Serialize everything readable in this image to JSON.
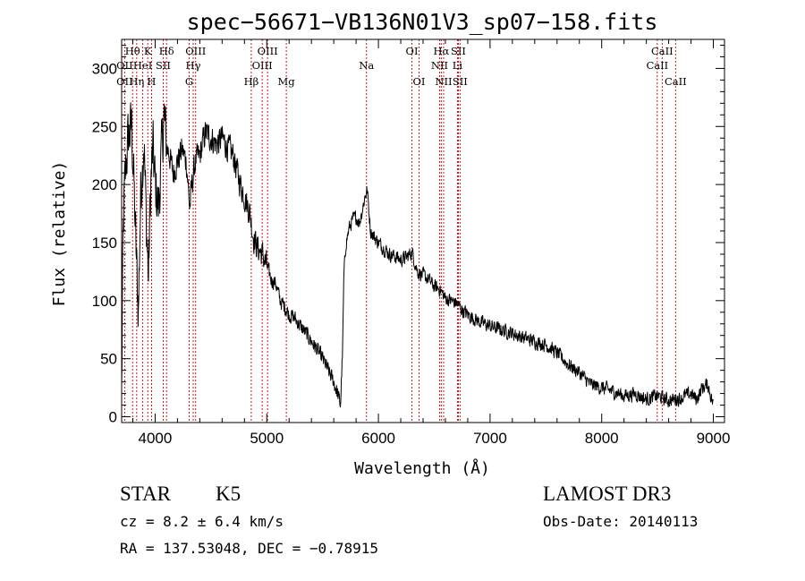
{
  "chart_data": {
    "type": "line",
    "title": "spec−56671−VB136N01V3_sp07−158.fits",
    "xlabel": "Wavelength (Å)",
    "ylabel": "Flux (relative)",
    "xlim": [
      3700,
      9100
    ],
    "ylim": [
      -5,
      325
    ],
    "xticks": [
      4000,
      5000,
      6000,
      7000,
      8000,
      9000
    ],
    "yticks": [
      0,
      50,
      100,
      150,
      200,
      250,
      300
    ],
    "spectrum_anchors": [
      [
        3700,
        20
      ],
      [
        3710,
        130
      ],
      [
        3720,
        180
      ],
      [
        3740,
        220
      ],
      [
        3760,
        240
      ],
      [
        3790,
        250
      ],
      [
        3810,
        200
      ],
      [
        3830,
        140
      ],
      [
        3850,
        90
      ],
      [
        3870,
        190
      ],
      [
        3900,
        240
      ],
      [
        3920,
        170
      ],
      [
        3940,
        120
      ],
      [
        3960,
        200
      ],
      [
        3980,
        230
      ],
      [
        4000,
        200
      ],
      [
        4030,
        180
      ],
      [
        4060,
        230
      ],
      [
        4080,
        260
      ],
      [
        4100,
        235
      ],
      [
        4130,
        225
      ],
      [
        4160,
        210
      ],
      [
        4200,
        220
      ],
      [
        4240,
        230
      ],
      [
        4280,
        220
      ],
      [
        4310,
        180
      ],
      [
        4330,
        200
      ],
      [
        4360,
        220
      ],
      [
        4400,
        225
      ],
      [
        4450,
        245
      ],
      [
        4500,
        240
      ],
      [
        4550,
        235
      ],
      [
        4600,
        240
      ],
      [
        4650,
        232
      ],
      [
        4700,
        225
      ],
      [
        4750,
        205
      ],
      [
        4800,
        190
      ],
      [
        4850,
        175
      ],
      [
        4880,
        155
      ],
      [
        4920,
        145
      ],
      [
        4960,
        140
      ],
      [
        5000,
        130
      ],
      [
        5040,
        118
      ],
      [
        5080,
        115
      ],
      [
        5120,
        100
      ],
      [
        5160,
        95
      ],
      [
        5200,
        88
      ],
      [
        5250,
        85
      ],
      [
        5300,
        78
      ],
      [
        5350,
        72
      ],
      [
        5400,
        65
      ],
      [
        5450,
        58
      ],
      [
        5500,
        50
      ],
      [
        5550,
        40
      ],
      [
        5600,
        30
      ],
      [
        5640,
        18
      ],
      [
        5660,
        10
      ],
      [
        5680,
        60
      ],
      [
        5690,
        120
      ],
      [
        5710,
        150
      ],
      [
        5740,
        163
      ],
      [
        5770,
        170
      ],
      [
        5800,
        172
      ],
      [
        5830,
        167
      ],
      [
        5860,
        180
      ],
      [
        5880,
        190
      ],
      [
        5900,
        195
      ],
      [
        5930,
        160
      ],
      [
        5960,
        155
      ],
      [
        6000,
        150
      ],
      [
        6050,
        145
      ],
      [
        6100,
        140
      ],
      [
        6150,
        138
      ],
      [
        6200,
        135
      ],
      [
        6260,
        138
      ],
      [
        6300,
        142
      ],
      [
        6350,
        125
      ],
      [
        6400,
        122
      ],
      [
        6450,
        118
      ],
      [
        6500,
        112
      ],
      [
        6550,
        110
      ],
      [
        6600,
        102
      ],
      [
        6650,
        100
      ],
      [
        6700,
        98
      ],
      [
        6750,
        92
      ],
      [
        6800,
        88
      ],
      [
        6900,
        82
      ],
      [
        7000,
        78
      ],
      [
        7100,
        75
      ],
      [
        7200,
        72
      ],
      [
        7300,
        68
      ],
      [
        7400,
        65
      ],
      [
        7500,
        62
      ],
      [
        7600,
        55
      ],
      [
        7700,
        45
      ],
      [
        7800,
        38
      ],
      [
        7900,
        28
      ],
      [
        8000,
        25
      ],
      [
        8100,
        22
      ],
      [
        8200,
        18
      ],
      [
        8300,
        20
      ],
      [
        8400,
        15
      ],
      [
        8500,
        18
      ],
      [
        8600,
        14
      ],
      [
        8700,
        16
      ],
      [
        8800,
        20
      ],
      [
        8850,
        15
      ],
      [
        8900,
        25
      ],
      [
        8950,
        28
      ],
      [
        9000,
        10
      ]
    ],
    "noise_amplitude_blue": 40,
    "noise_amplitude_red": 9,
    "line_markers": [
      {
        "label": "Hθ",
        "wavelength": 3798,
        "row": 1
      },
      {
        "label": "OII",
        "wavelength": 3727,
        "row": 2
      },
      {
        "label": "OII",
        "wavelength": 3727,
        "row": 3
      },
      {
        "label": "Hη",
        "wavelength": 3835,
        "row": 3
      },
      {
        "label": "K",
        "wavelength": 3934,
        "row": 1
      },
      {
        "label": "HeI",
        "wavelength": 3889,
        "row": 2
      },
      {
        "label": "H",
        "wavelength": 3968,
        "row": 3
      },
      {
        "label": "SII",
        "wavelength": 4072,
        "row": 2
      },
      {
        "label": "Hδ",
        "wavelength": 4102,
        "row": 1
      },
      {
        "label": "OIII",
        "wavelength": 4363,
        "row": 1
      },
      {
        "label": "Hγ",
        "wavelength": 4341,
        "row": 2
      },
      {
        "label": "G",
        "wavelength": 4305,
        "row": 3
      },
      {
        "label": "Hβ",
        "wavelength": 4861,
        "row": 3
      },
      {
        "label": "OIII",
        "wavelength": 4959,
        "row": 2
      },
      {
        "label": "OIII",
        "wavelength": 5007,
        "row": 1
      },
      {
        "label": "Mg",
        "wavelength": 5175,
        "row": 3
      },
      {
        "label": "Na",
        "wavelength": 5893,
        "row": 2
      },
      {
        "label": "OI",
        "wavelength": 6300,
        "row": 1
      },
      {
        "label": "OI",
        "wavelength": 6364,
        "row": 3
      },
      {
        "label": "Hα",
        "wavelength": 6563,
        "row": 1
      },
      {
        "label": "NII",
        "wavelength": 6548,
        "row": 2
      },
      {
        "label": "NII",
        "wavelength": 6584,
        "row": 3
      },
      {
        "label": "SII",
        "wavelength": 6716,
        "row": 1
      },
      {
        "label": "Li",
        "wavelength": 6708,
        "row": 2
      },
      {
        "label": "SII",
        "wavelength": 6731,
        "row": 3
      },
      {
        "label": "CaII",
        "wavelength": 8542,
        "row": 1
      },
      {
        "label": "CaII",
        "wavelength": 8498,
        "row": 2
      },
      {
        "label": "CaII",
        "wavelength": 8662,
        "row": 3
      }
    ],
    "marker_color": "#cc0000",
    "line_color": "#000000"
  },
  "footer": {
    "object_class": "STAR",
    "subclass": "K5",
    "survey": "LAMOST DR3",
    "redshift": "cz = 8.2 ± 6.4 km/s",
    "obs_date": "Obs-Date: 20140113",
    "coords": "RA = 137.53048, DEC =  −0.78915"
  }
}
